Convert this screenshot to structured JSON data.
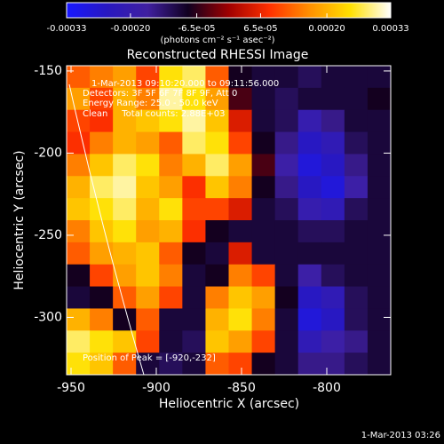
{
  "chart_data": {
    "type": "heatmap",
    "title": "Reconstructed RHESSI Image",
    "x_label": "Heliocentric X (arcsec)",
    "y_label": "Heliocentric Y (arcsec)",
    "colorbar_label": "(photons cm⁻² s⁻¹ asec⁻²)",
    "annotations": [
      "1-Mar-2013 09:10:20.000 to 09:11:56.000",
      "Detectors: 3F 5F 6F 7F 8F 9F, Att 0",
      "Energy Range: 25.0 - 50.0 keV",
      "Clean     Total counts: 2.88E+03"
    ],
    "peak_label": "Position of Peak = [-920,-232]",
    "footer": "1-Mar-2013 03:26",
    "xlim": [
      -952.6,
      -762.5
    ],
    "ylim": [
      -334.9,
      -146.8
    ],
    "xticks": [
      -950,
      -900,
      -850,
      -800
    ],
    "yticks": [
      -150,
      -200,
      -250,
      -300
    ],
    "clim": [
      -0.00033,
      0.00033
    ],
    "cticks": [
      -0.00033,
      {
        "value": -0.0002,
        "label": "-0.00020"
      },
      {
        "value": -6.5e-05,
        "label": "-6.5e-05"
      },
      {
        "value": 6.5e-05,
        "label": "6.5e-05"
      },
      {
        "value": 0.0002,
        "label": "0.00020"
      },
      0.00033
    ],
    "colormap": [
      "#1818ff",
      "#2818c0",
      "#4020a0",
      "#100020",
      "#a00000",
      "#ff3000",
      "#ff9000",
      "#ffe000",
      "#ffffff"
    ],
    "z": [
      [
        0.00012,
        0.00015,
        0.00018,
        0.0001,
        0.00025,
        0.00028,
        0.00012,
        -8e-05,
        -0.0001,
        -0.0001,
        -0.00012,
        -0.0001,
        -0.0001,
        -0.0001
      ],
      [
        0.00018,
        0.0001,
        0.0002,
        0.00015,
        0.0003,
        0.00025,
        0.00018,
        -5e-05,
        -0.0001,
        -0.00012,
        -0.0001,
        -0.0001,
        -0.0001,
        -8e-05
      ],
      [
        0.0001,
        8e-05,
        0.0002,
        0.00022,
        0.00025,
        0.0003,
        0.00022,
        5e-05,
        -0.0001,
        -0.00012,
        -0.0002,
        -0.00015,
        -0.0001,
        -0.0001
      ],
      [
        8e-05,
        0.00015,
        0.0002,
        0.00018,
        0.00012,
        0.00028,
        0.00025,
        0.0001,
        -8e-05,
        -0.00015,
        -0.00025,
        -0.00022,
        -0.00012,
        -0.0001
      ],
      [
        0.00015,
        0.00022,
        0.00028,
        0.00025,
        0.00015,
        0.0002,
        0.00028,
        0.00018,
        -5e-05,
        -0.00018,
        -0.00028,
        -0.00025,
        -0.00015,
        -0.0001
      ],
      [
        0.0002,
        0.00028,
        0.0003,
        0.00022,
        0.00018,
        8e-05,
        0.00022,
        0.00015,
        -8e-05,
        -0.00015,
        -0.00025,
        -0.00028,
        -0.00018,
        -0.0001
      ],
      [
        0.00022,
        0.00025,
        0.00028,
        0.0002,
        0.00025,
        0.0001,
        0.0001,
        5e-05,
        -0.0001,
        -0.00012,
        -0.0002,
        -0.00022,
        -0.00012,
        -0.0001
      ],
      [
        0.00015,
        0.00022,
        0.00025,
        0.00018,
        0.0002,
        8e-05,
        -8e-05,
        -0.0001,
        -0.0001,
        -0.0001,
        -0.00012,
        -0.00012,
        -0.0001,
        -0.0001
      ],
      [
        0.00012,
        0.00018,
        0.0002,
        0.00022,
        0.00012,
        -8e-05,
        -0.0001,
        5e-05,
        -0.0001,
        -0.0001,
        -0.0001,
        -0.0001,
        -0.0001,
        -0.0001
      ],
      [
        -8e-05,
        0.0001,
        0.00018,
        0.00022,
        0.00015,
        -0.0001,
        -8e-05,
        0.00015,
        0.0001,
        -0.0001,
        -0.00018,
        -0.00012,
        -0.0001,
        -0.0001
      ],
      [
        -0.0001,
        -8e-05,
        0.00012,
        0.00018,
        0.0001,
        -0.0001,
        0.00015,
        0.00022,
        0.00018,
        -8e-05,
        -0.00025,
        -0.00022,
        -0.00012,
        -0.0001
      ],
      [
        0.0002,
        0.00015,
        -8e-05,
        0.00012,
        -0.0001,
        -0.0001,
        0.0002,
        0.00025,
        0.00015,
        -0.0001,
        -0.00028,
        -0.00025,
        -0.00012,
        -0.0001
      ],
      [
        0.00028,
        0.00025,
        0.00022,
        0.0001,
        -0.0001,
        -0.00012,
        0.00022,
        0.00018,
        0.0001,
        -0.0001,
        -0.00022,
        -0.00018,
        -0.00015,
        -0.0001
      ],
      [
        0.00025,
        0.00022,
        0.00012,
        -0.0001,
        -0.00012,
        -0.0001,
        0.00012,
        0.0001,
        -8e-05,
        -0.0001,
        -0.00015,
        -0.00015,
        -0.00012,
        -0.0001
      ]
    ]
  }
}
